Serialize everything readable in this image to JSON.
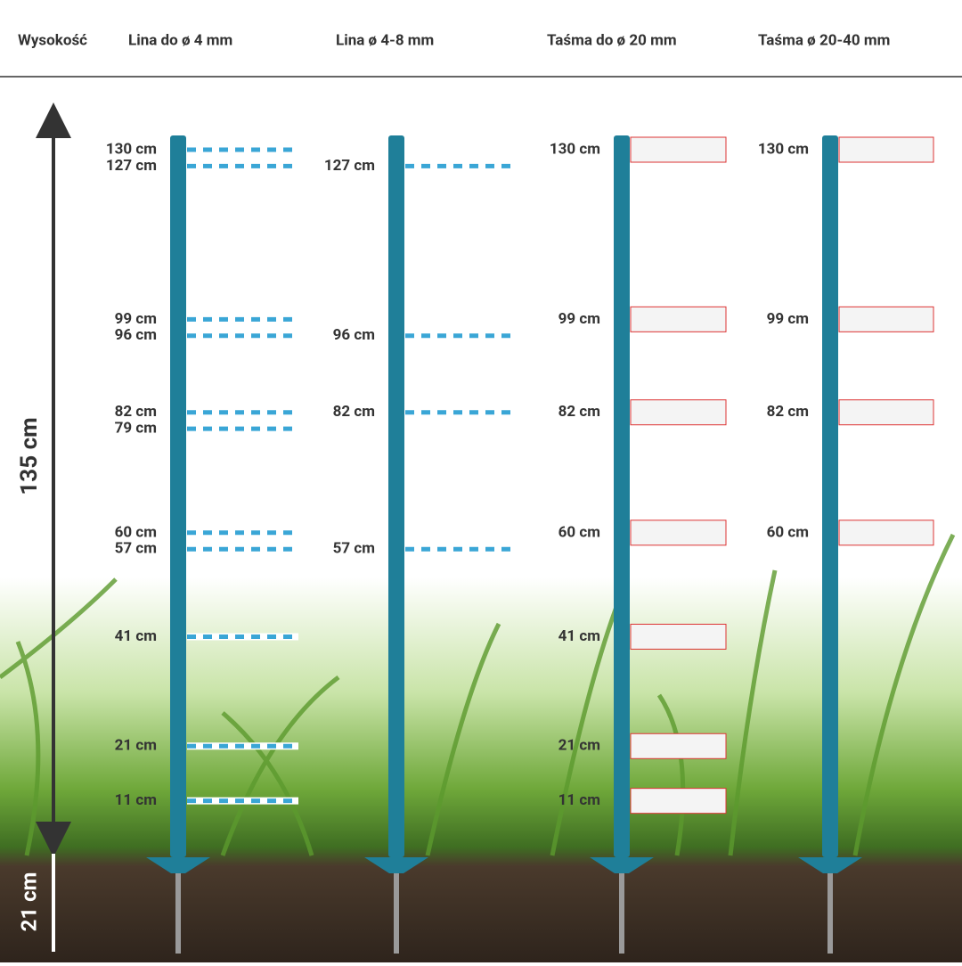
{
  "header": {
    "columns": [
      "Wysokość",
      "Lina do ø 4 mm",
      "Lina ø 4-8 mm",
      "Taśma do ø 20 mm",
      "Taśma ø 20-40 mm"
    ]
  },
  "posts": [
    [
      "130 cm",
      "127 cm",
      "99 cm",
      "96 cm",
      "82 cm",
      "79 cm",
      "60 cm",
      "57 cm",
      "41 cm",
      "21 cm",
      "11 cm"
    ],
    [
      "127 cm",
      "96 cm",
      "82 cm",
      "57 cm"
    ],
    [
      "130 cm",
      "99 cm",
      "82 cm",
      "60 cm",
      "41 cm",
      "21 cm",
      "11 cm"
    ],
    [
      "130 cm",
      "99 cm",
      "82 cm",
      "60 cm"
    ]
  ],
  "dimensions": {
    "height": "135 cm",
    "depth": "21 cm"
  }
}
